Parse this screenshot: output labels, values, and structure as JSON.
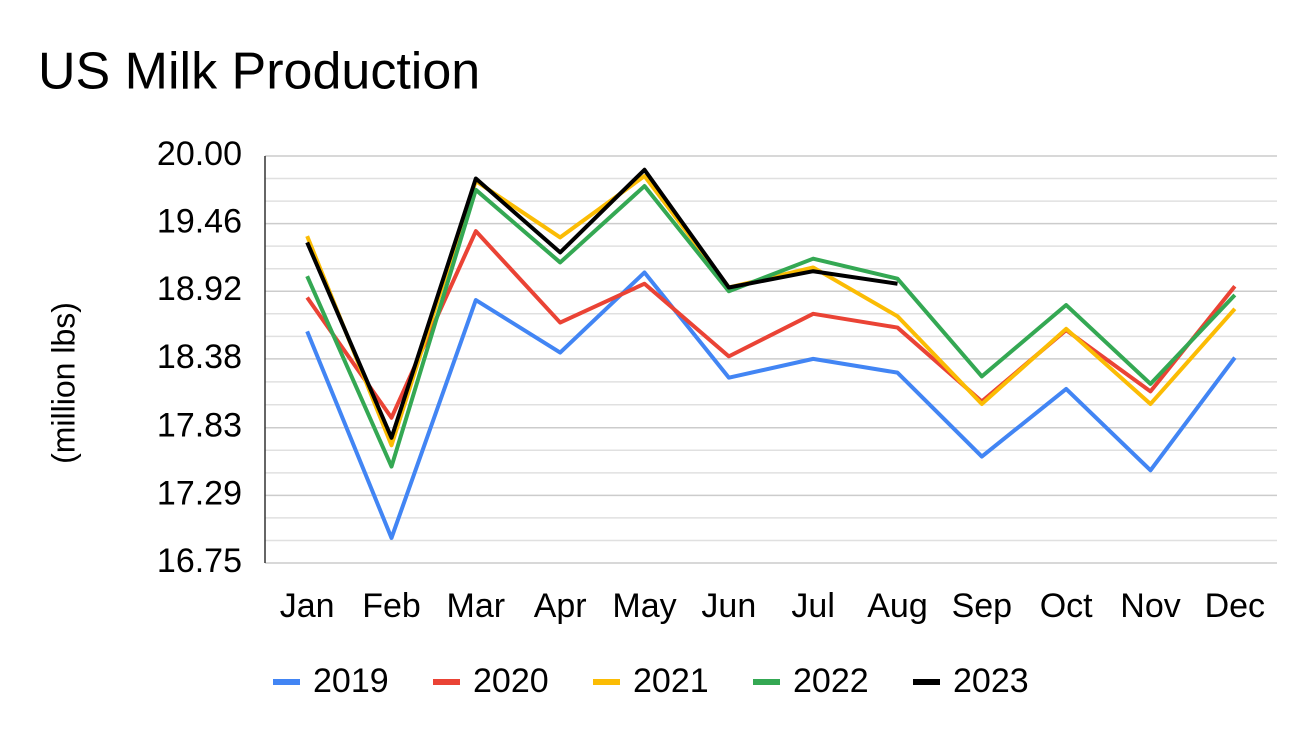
{
  "chart_data": {
    "type": "line",
    "title": "US Milk Production",
    "y_label": "(million lbs)",
    "categories": [
      "Jan",
      "Feb",
      "Mar",
      "Apr",
      "May",
      "Jun",
      "Jul",
      "Aug",
      "Sep",
      "Oct",
      "Nov",
      "Dec"
    ],
    "series": [
      {
        "name": "2019",
        "color": "#4285f4",
        "values": [
          18.6,
          16.95,
          18.85,
          18.43,
          19.07,
          18.23,
          18.38,
          18.27,
          17.6,
          18.14,
          17.49,
          18.39
        ]
      },
      {
        "name": "2020",
        "color": "#ea4335",
        "values": [
          18.87,
          17.91,
          19.4,
          18.67,
          18.98,
          18.4,
          18.74,
          18.63,
          18.04,
          18.61,
          18.12,
          18.96
        ]
      },
      {
        "name": "2021",
        "color": "#fbbc04",
        "values": [
          19.36,
          17.69,
          19.8,
          19.35,
          19.84,
          18.95,
          19.11,
          18.72,
          18.02,
          18.62,
          18.02,
          18.78
        ]
      },
      {
        "name": "2022",
        "color": "#34a853",
        "values": [
          19.04,
          17.52,
          19.73,
          19.15,
          19.76,
          18.92,
          19.18,
          19.02,
          18.24,
          18.81,
          18.18,
          18.89
        ]
      },
      {
        "name": "2023",
        "color": "#000000",
        "values": [
          19.31,
          17.75,
          19.82,
          19.23,
          19.89,
          18.95,
          19.08,
          18.98,
          null,
          null,
          null,
          null
        ]
      }
    ],
    "ylim": [
      16.75,
      20
    ],
    "yticks": [
      16.75,
      17.29,
      17.83,
      18.38,
      18.92,
      19.46,
      {
        "value": 20,
        "label": "20.00"
      }
    ],
    "grid": true,
    "minor_gridlines": 2,
    "legend": "bottom"
  }
}
